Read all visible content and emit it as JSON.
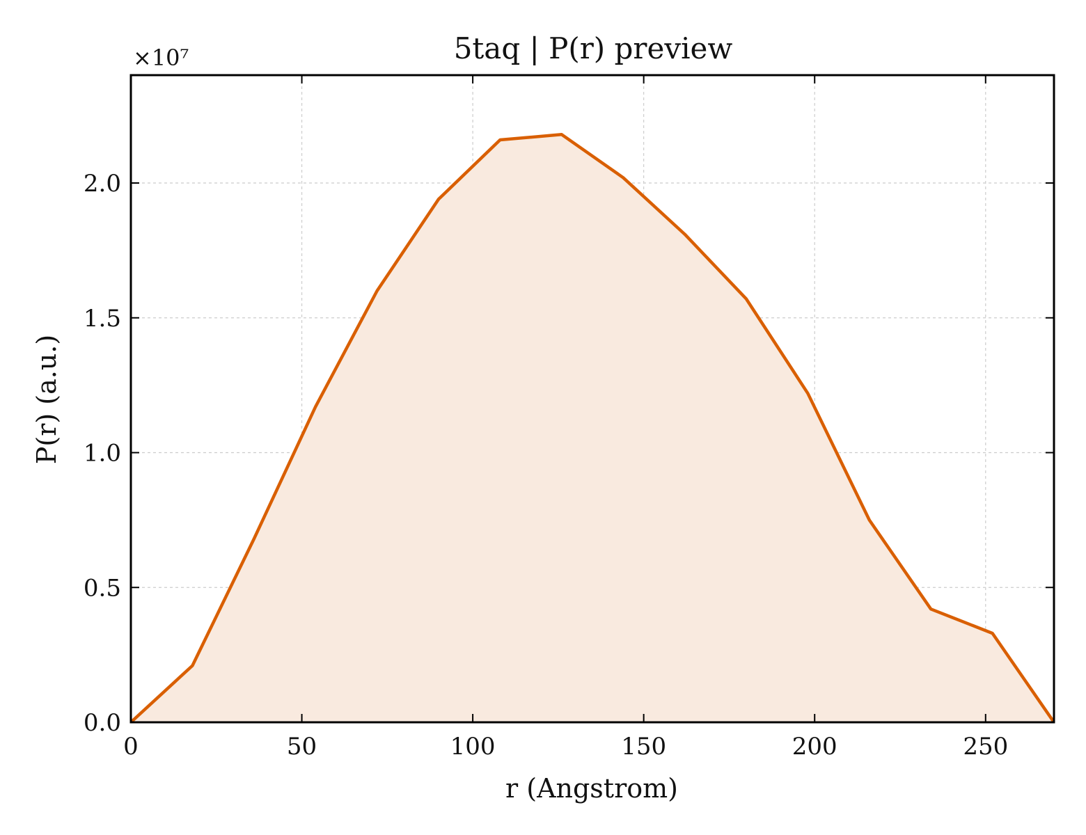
{
  "chart_data": {
    "type": "area",
    "title": "5taq | P(r) preview",
    "xlabel": "r (Angstrom)",
    "ylabel": "P(r) (a.u.)",
    "y_offset_label": "×10⁷",
    "y_scale": 10000000,
    "xlim": [
      0,
      270
    ],
    "ylim": [
      0,
      24000000
    ],
    "x_ticks": [
      0,
      50,
      100,
      150,
      200,
      250
    ],
    "x_tick_labels": [
      "0",
      "50",
      "100",
      "150",
      "200",
      "250"
    ],
    "y_ticks": [
      0,
      5000000,
      10000000,
      15000000,
      20000000
    ],
    "y_tick_labels": [
      "0.0",
      "0.5",
      "1.0",
      "1.5",
      "2.0"
    ],
    "grid": true,
    "legend": "none",
    "line_color": "#d95f02",
    "fill_color": "#f9eadf",
    "series": [
      {
        "x": [
          0,
          18,
          36,
          54,
          72,
          90,
          108,
          126,
          144,
          162,
          180,
          198,
          216,
          234,
          252,
          270
        ],
        "y": [
          0,
          2100000,
          6800000,
          11700000,
          16000000,
          19400000,
          21600000,
          21800000,
          20200000,
          18100000,
          15700000,
          12200000,
          7500000,
          4200000,
          3300000,
          0
        ]
      }
    ]
  }
}
